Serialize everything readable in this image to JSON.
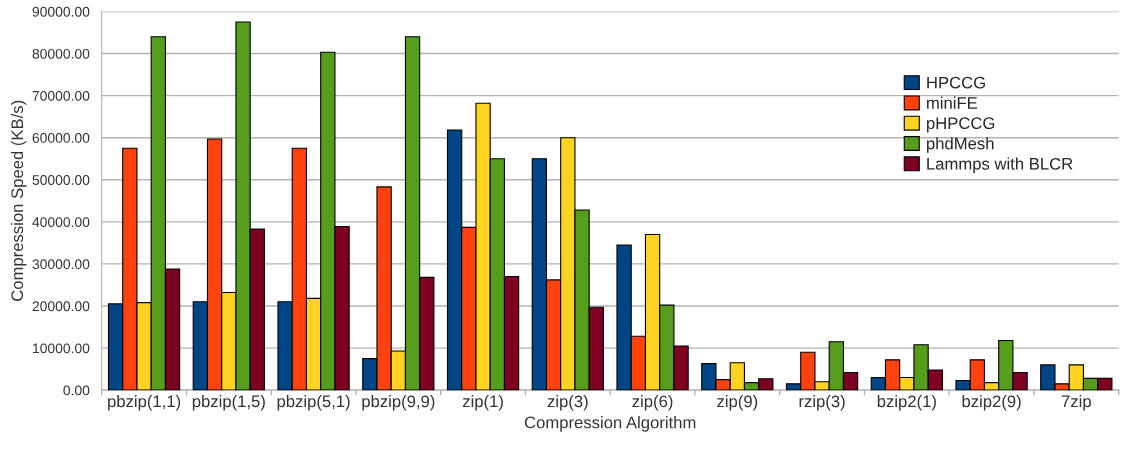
{
  "chart_data": {
    "type": "bar",
    "xlabel": "Compression Algorithm",
    "ylabel": "Compression Speed (KB/s)",
    "categories": [
      "pbzip(1,1)",
      "pbzip(1,5)",
      "pbzip(5,1)",
      "pbzip(9,9)",
      "zip(1)",
      "zip(3)",
      "zip(6)",
      "zip(9)",
      "rzip(3)",
      "bzip2(1)",
      "bzip2(9)",
      "7zip"
    ],
    "series": [
      {
        "name": "HPCCG",
        "color": "#004586",
        "values": [
          20500,
          21000,
          21000,
          7500,
          61800,
          55000,
          34500,
          6300,
          1500,
          3000,
          2300,
          6000
        ]
      },
      {
        "name": "miniFE",
        "color": "#ff420e",
        "values": [
          57500,
          59700,
          57500,
          48300,
          38700,
          26200,
          12800,
          2500,
          9000,
          7200,
          7200,
          1500
        ]
      },
      {
        "name": "pHPCCG",
        "color": "#ffd320",
        "values": [
          20800,
          23200,
          21800,
          9300,
          68200,
          60000,
          37000,
          6500,
          2000,
          3000,
          1800,
          6000
        ]
      },
      {
        "name": "phdMesh",
        "color": "#579d1c",
        "values": [
          84000,
          87500,
          80300,
          84000,
          55000,
          42800,
          20200,
          1800,
          11500,
          10800,
          11800,
          2800
        ]
      },
      {
        "name": "Lammps with BLCR",
        "color": "#7e0021",
        "values": [
          28800,
          38300,
          38900,
          26800,
          27000,
          19700,
          10500,
          2700,
          4200,
          4800,
          4200,
          2800
        ]
      }
    ],
    "ylim": [
      0,
      90000
    ],
    "yticks": [
      {
        "value": 0,
        "label": "0.00"
      },
      {
        "value": 10000,
        "label": "10000.00"
      },
      {
        "value": 20000,
        "label": "20000.00"
      },
      {
        "value": 30000,
        "label": "30000.00"
      },
      {
        "value": 40000,
        "label": "40000.00"
      },
      {
        "value": 50000,
        "label": "50000.00"
      },
      {
        "value": 60000,
        "label": "60000.00"
      },
      {
        "value": 70000,
        "label": "70000.00"
      },
      {
        "value": 80000,
        "label": "80000.00"
      },
      {
        "value": 90000,
        "label": "90000.00"
      }
    ],
    "grid": "y",
    "legend": "top right"
  }
}
